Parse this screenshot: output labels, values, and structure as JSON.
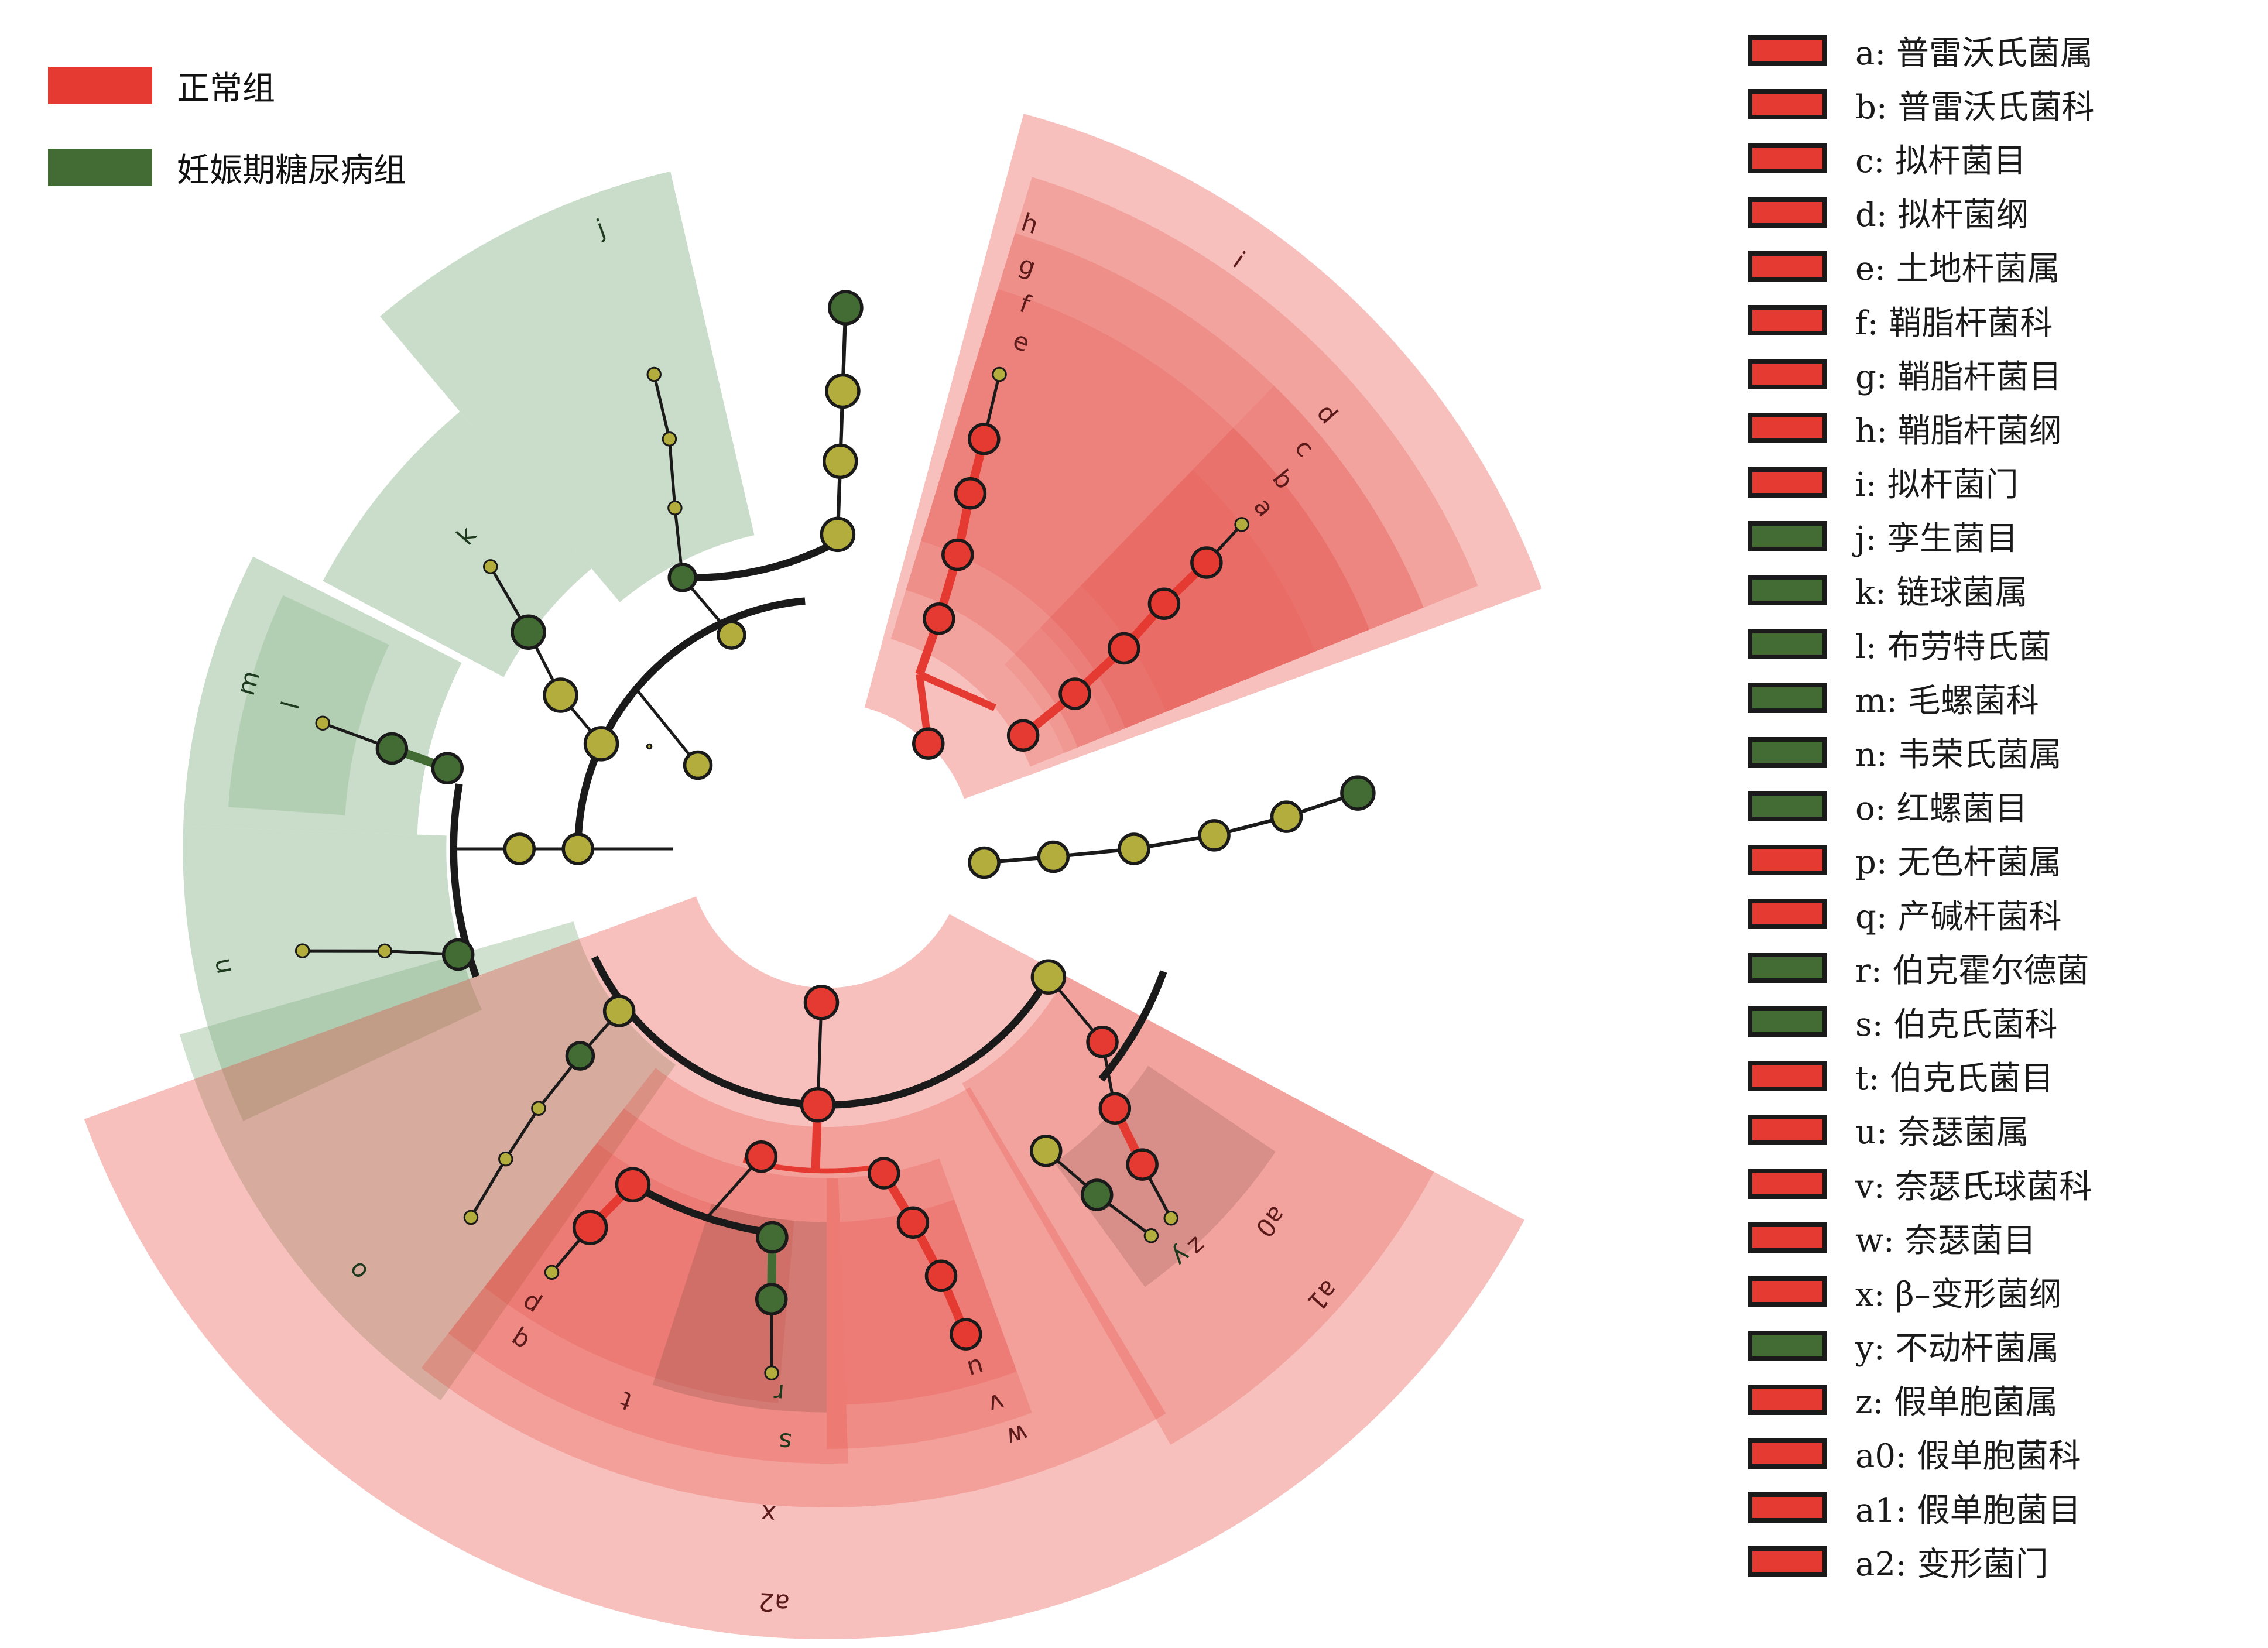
{
  "figure_type": "LEfSe cladogram",
  "colors": {
    "normal_group": "#e53a31",
    "gdm_group": "#436b34",
    "nonsignificant_node": "#b2ad3c",
    "red_highlight": "#e53a31",
    "green_highlight": "#8ab48a",
    "branch": "#1a1a1a"
  },
  "group_legend": [
    {
      "label": "正常组",
      "color": "#e53a31"
    },
    {
      "label": "妊娠期糖尿病组",
      "color": "#436b34"
    }
  ],
  "taxa_legend": [
    {
      "key": "a",
      "label": "a: 普雷沃氏菌属",
      "group": "normal"
    },
    {
      "key": "b",
      "label": "b: 普雷沃氏菌科",
      "group": "normal"
    },
    {
      "key": "c",
      "label": "c: 拟杆菌目",
      "group": "normal"
    },
    {
      "key": "d",
      "label": "d: 拟杆菌纲",
      "group": "normal"
    },
    {
      "key": "e",
      "label": "e: 土地杆菌属",
      "group": "normal"
    },
    {
      "key": "f",
      "label": "f: 鞘脂杆菌科",
      "group": "normal"
    },
    {
      "key": "g",
      "label": "g: 鞘脂杆菌目",
      "group": "normal"
    },
    {
      "key": "h",
      "label": "h: 鞘脂杆菌纲",
      "group": "normal"
    },
    {
      "key": "i",
      "label": "i: 拟杆菌门",
      "group": "normal"
    },
    {
      "key": "j",
      "label": "j: 孪生菌目",
      "group": "gdm"
    },
    {
      "key": "k",
      "label": "k: 链球菌属",
      "group": "gdm"
    },
    {
      "key": "l",
      "label": "l: 布劳特氏菌",
      "group": "gdm"
    },
    {
      "key": "m",
      "label": "m: 毛螺菌科",
      "group": "gdm"
    },
    {
      "key": "n",
      "label": "n: 韦荣氏菌属",
      "group": "gdm"
    },
    {
      "key": "o",
      "label": "o: 红螺菌目",
      "group": "gdm"
    },
    {
      "key": "p",
      "label": "p: 无色杆菌属",
      "group": "normal"
    },
    {
      "key": "q",
      "label": "q: 产碱杆菌科",
      "group": "normal"
    },
    {
      "key": "r",
      "label": "r: 伯克霍尔德菌",
      "group": "gdm"
    },
    {
      "key": "s",
      "label": "s: 伯克氏菌科",
      "group": "gdm"
    },
    {
      "key": "t",
      "label": "t: 伯克氏菌目",
      "group": "normal"
    },
    {
      "key": "u",
      "label": "u: 奈瑟菌属",
      "group": "normal"
    },
    {
      "key": "v",
      "label": "v: 奈瑟氏球菌科",
      "group": "normal"
    },
    {
      "key": "w",
      "label": "w: 奈瑟菌目",
      "group": "normal"
    },
    {
      "key": "x",
      "label": "x: β–变形菌纲",
      "group": "normal"
    },
    {
      "key": "y",
      "label": "y: 不动杆菌属",
      "group": "gdm"
    },
    {
      "key": "z",
      "label": "z: 假单胞菌属",
      "group": "normal"
    },
    {
      "key": "a0",
      "label": "a0: 假单胞菌科",
      "group": "normal"
    },
    {
      "key": "a1",
      "label": "a1: 假单胞菌目",
      "group": "normal"
    },
    {
      "key": "a2",
      "label": "a2: 变形菌门",
      "group": "normal"
    }
  ],
  "clade_labels": [
    "a",
    "b",
    "c",
    "d",
    "e",
    "f",
    "g",
    "h",
    "i",
    "j",
    "k",
    "l",
    "m",
    "n",
    "o",
    "p",
    "q",
    "r",
    "s",
    "t",
    "u",
    "v",
    "w",
    "x",
    "y",
    "z",
    "a0",
    "a1",
    "a2"
  ]
}
